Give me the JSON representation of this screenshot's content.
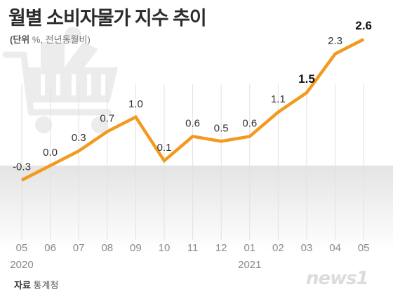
{
  "title": "월별 소비자물가 지수 추이",
  "unit_label": "(단위",
  "unit_text": "%, 전년동월비)",
  "source_label": "자료",
  "source_text": "통계청",
  "logo_text": "news1",
  "colors": {
    "line": "#f39a1e",
    "label": "#333333",
    "label_emphasis": "#111111",
    "axis_text": "#8a8a8a",
    "grid": "#e2e2e2",
    "negative_band": "#eaeaea",
    "cart_icon": "#ededed"
  },
  "icon": "shopping-cart-icon",
  "chart_data": {
    "type": "line",
    "categories": [
      "05",
      "06",
      "07",
      "08",
      "09",
      "10",
      "11",
      "12",
      "01",
      "02",
      "03",
      "04",
      "05"
    ],
    "year_labels": [
      {
        "at_index": 0,
        "text": "2020"
      },
      {
        "at_index": 8,
        "text": "2021"
      }
    ],
    "series": [
      {
        "values": [
          -0.3,
          0.0,
          0.3,
          0.7,
          1.0,
          0.1,
          0.6,
          0.5,
          0.6,
          1.1,
          1.5,
          2.3,
          2.6
        ]
      }
    ],
    "data_labels": [
      "-0.3",
      "0.0",
      "0.3",
      "0.7",
      "1.0",
      "0.1",
      "0.6",
      "0.5",
      "0.6",
      "1.1",
      "1.5",
      "2.3",
      "2.6"
    ],
    "emphasized_labels": [
      10,
      12
    ],
    "ylim": [
      -0.6,
      2.6
    ],
    "grid": true,
    "negative_shading": true
  }
}
